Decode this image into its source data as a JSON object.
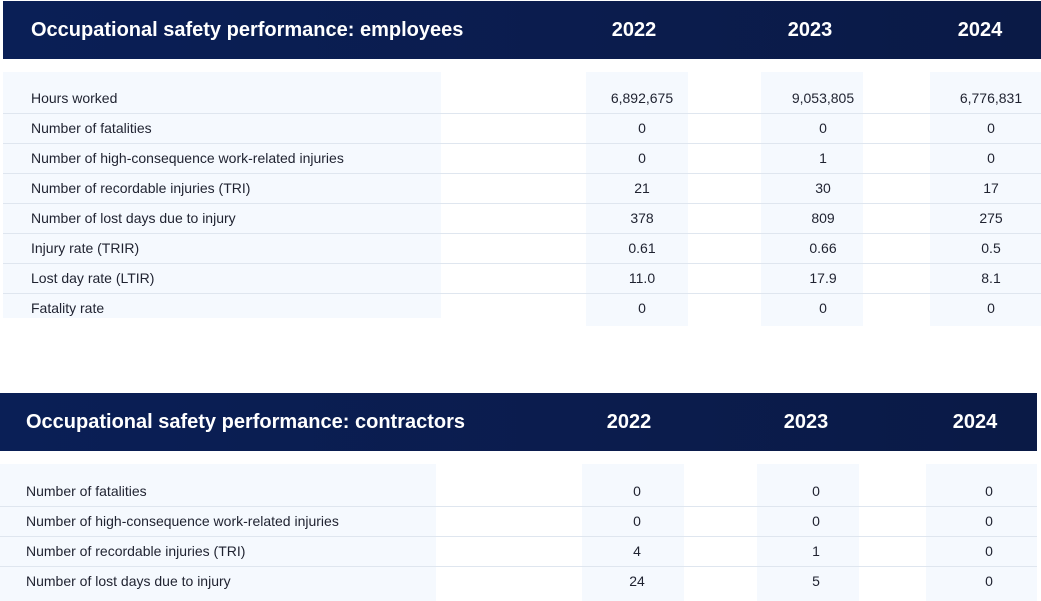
{
  "employees": {
    "title": "Occupational safety performance: employees",
    "years": [
      "2022",
      "2023",
      "2024"
    ],
    "rows": [
      {
        "label": "Hours worked",
        "values": [
          "6,892,675",
          "9,053,805",
          "6,776,831"
        ]
      },
      {
        "label": "Number of fatalities",
        "values": [
          "0",
          "0",
          "0"
        ]
      },
      {
        "label": "Number of high-consequence work-related injuries",
        "values": [
          "0",
          "1",
          "0"
        ]
      },
      {
        "label": "Number of recordable injuries (TRI)",
        "values": [
          "21",
          "30",
          "17"
        ]
      },
      {
        "label": "Number of lost days due to injury",
        "values": [
          "378",
          "809",
          "275"
        ]
      },
      {
        "label": "Injury rate (TRIR)",
        "values": [
          "0.61",
          "0.66",
          "0.5"
        ]
      },
      {
        "label": "Lost day rate (LTIR)",
        "values": [
          "11.0",
          "17.9",
          "8.1"
        ]
      },
      {
        "label": "Fatality rate",
        "values": [
          "0",
          "0",
          "0"
        ]
      }
    ]
  },
  "contractors": {
    "title": "Occupational safety performance: contractors",
    "years": [
      "2022",
      "2023",
      "2024"
    ],
    "rows": [
      {
        "label": "Number of fatalities",
        "values": [
          "0",
          "0",
          "0"
        ]
      },
      {
        "label": "Number of high-consequence work-related injuries",
        "values": [
          "0",
          "0",
          "0"
        ]
      },
      {
        "label": "Number of recordable injuries (TRI)",
        "values": [
          "4",
          "1",
          "0"
        ]
      },
      {
        "label": "Number of lost days due to injury",
        "values": [
          "24",
          "5",
          "0"
        ]
      }
    ]
  },
  "colors": {
    "header_bg": "#0b1c4d",
    "panel_bg": "#f5f9fe",
    "divider": "#dfe6ef"
  }
}
